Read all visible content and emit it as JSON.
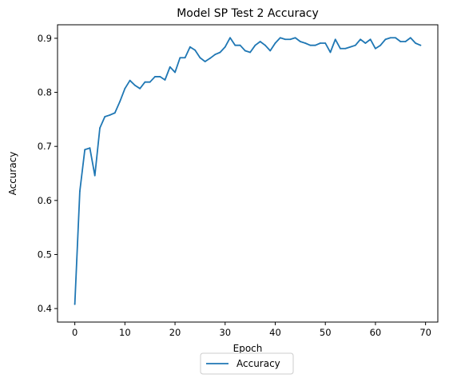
{
  "chart_data": {
    "type": "line",
    "title": "Model SP Test 2 Accuracy",
    "xlabel": "Epoch",
    "ylabel": "Accuracy",
    "xlim": [
      -3.45,
      72.45
    ],
    "ylim": [
      0.375,
      0.925
    ],
    "xticks": [
      0,
      10,
      20,
      30,
      40,
      50,
      60,
      70
    ],
    "yticks": [
      0.4,
      0.5,
      0.6,
      0.7,
      0.8,
      0.9
    ],
    "xtick_labels": [
      "0",
      "10",
      "20",
      "30",
      "40",
      "50",
      "60",
      "70"
    ],
    "ytick_labels": [
      "0.4",
      "0.5",
      "0.6",
      "0.7",
      "0.8",
      "0.9"
    ],
    "grid": false,
    "legend": {
      "position": "below",
      "entries": [
        "Accuracy"
      ]
    },
    "series": [
      {
        "name": "Accuracy",
        "color": "#1f77b4",
        "x": [
          0,
          1,
          2,
          3,
          4,
          5,
          6,
          7,
          8,
          9,
          10,
          11,
          12,
          13,
          14,
          15,
          16,
          17,
          18,
          19,
          20,
          21,
          22,
          23,
          24,
          25,
          26,
          27,
          28,
          29,
          30,
          31,
          32,
          33,
          34,
          35,
          36,
          37,
          38,
          39,
          40,
          41,
          42,
          43,
          44,
          45,
          46,
          47,
          48,
          49,
          50,
          51,
          52,
          53,
          54,
          55,
          56,
          57,
          58,
          59,
          60,
          61,
          62,
          63,
          64,
          65,
          66,
          67,
          68,
          69
        ],
        "values": [
          0.408,
          0.617,
          0.694,
          0.697,
          0.646,
          0.734,
          0.755,
          0.758,
          0.762,
          0.783,
          0.807,
          0.822,
          0.813,
          0.807,
          0.819,
          0.819,
          0.829,
          0.829,
          0.823,
          0.847,
          0.837,
          0.864,
          0.864,
          0.884,
          0.878,
          0.864,
          0.857,
          0.863,
          0.87,
          0.874,
          0.884,
          0.901,
          0.887,
          0.887,
          0.877,
          0.874,
          0.887,
          0.894,
          0.887,
          0.877,
          0.891,
          0.901,
          0.898,
          0.898,
          0.901,
          0.894,
          0.891,
          0.887,
          0.887,
          0.891,
          0.891,
          0.874,
          0.898,
          0.881,
          0.881,
          0.884,
          0.887,
          0.898,
          0.891,
          0.898,
          0.881,
          0.887,
          0.898,
          0.901,
          0.901,
          0.894,
          0.894,
          0.901,
          0.891,
          0.887
        ]
      }
    ]
  }
}
